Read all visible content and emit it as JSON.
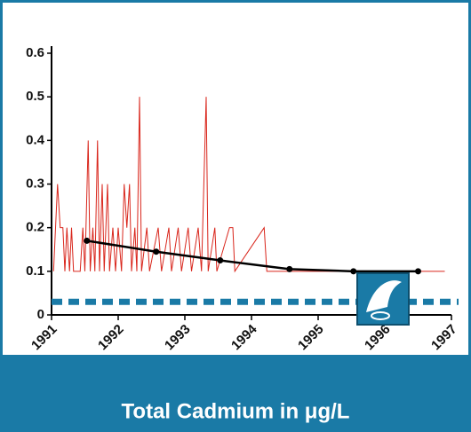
{
  "chart_data": {
    "type": "line",
    "title": "Total Cadmium in μg/L",
    "xlim": [
      1991,
      1997
    ],
    "xticks": [
      1991,
      1992,
      1993,
      1994,
      1995,
      1996,
      1997
    ],
    "ylim": [
      0,
      0.6
    ],
    "yticks": [
      0,
      0.1,
      0.2,
      0.3,
      0.4,
      0.5,
      0.6
    ],
    "reference_line": {
      "value": 0.03,
      "color": "#1a7aa6"
    },
    "series": [
      {
        "color": "#d9261c",
        "markers": false,
        "x": [
          1991.03,
          1991.09,
          1991.13,
          1991.17,
          1991.2,
          1991.23,
          1991.27,
          1991.3,
          1991.33,
          1991.43,
          1991.47,
          1991.5,
          1991.55,
          1991.58,
          1991.62,
          1991.65,
          1991.69,
          1991.72,
          1991.76,
          1991.79,
          1991.84,
          1991.87,
          1991.92,
          1991.96,
          1992.0,
          1992.05,
          1992.09,
          1992.13,
          1992.17,
          1992.2,
          1992.25,
          1992.28,
          1992.32,
          1992.35,
          1992.43,
          1992.47,
          1992.6,
          1992.65,
          1992.76,
          1992.8,
          1992.9,
          1992.95,
          1993.05,
          1993.1,
          1993.2,
          1993.25,
          1993.32,
          1993.35,
          1993.45,
          1993.48,
          1993.67,
          1993.72,
          1993.75,
          1994.19,
          1994.23,
          1996.9
        ],
        "values": [
          0.1,
          0.3,
          0.2,
          0.2,
          0.1,
          0.2,
          0.1,
          0.2,
          0.1,
          0.1,
          0.2,
          0.1,
          0.4,
          0.1,
          0.2,
          0.1,
          0.4,
          0.1,
          0.3,
          0.1,
          0.3,
          0.1,
          0.2,
          0.1,
          0.2,
          0.1,
          0.3,
          0.2,
          0.3,
          0.1,
          0.2,
          0.1,
          0.5,
          0.1,
          0.2,
          0.1,
          0.2,
          0.1,
          0.2,
          0.1,
          0.2,
          0.1,
          0.2,
          0.1,
          0.2,
          0.1,
          0.5,
          0.1,
          0.2,
          0.1,
          0.2,
          0.2,
          0.1,
          0.2,
          0.1,
          0.1
        ]
      },
      {
        "color": "#000000",
        "markers": true,
        "x": [
          1991.53,
          1992.57,
          1993.53,
          1994.57,
          1995.53,
          1996.5
        ],
        "values": [
          0.17,
          0.145,
          0.125,
          0.105,
          0.1,
          0.1
        ]
      }
    ]
  }
}
